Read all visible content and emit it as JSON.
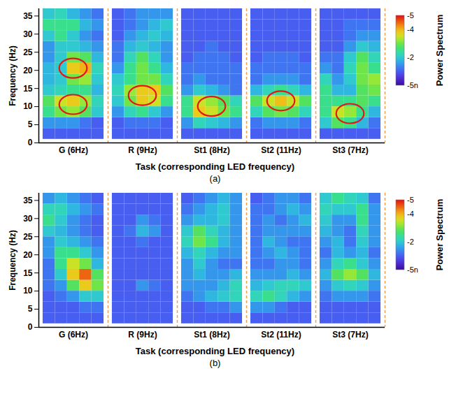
{
  "chart_data": [
    {
      "type": "heatmap",
      "title": "(a)",
      "x_label": "Task (corresponding LED frequency)",
      "y_label": "Frequency (Hz)",
      "categories": [
        "G (6Hz)",
        "R (9Hz)",
        "St1 (8Hz)",
        "St2 (11Hz)",
        "St3 (7Hz)"
      ],
      "ylim": [
        0,
        37
      ],
      "yticks": [
        0,
        5,
        10,
        15,
        20,
        25,
        30,
        35
      ],
      "frequency_bins": [
        1,
        4,
        7,
        10,
        13,
        16,
        19,
        22,
        25,
        28,
        31,
        34,
        37
      ],
      "cells": [
        [
          [
            1,
            1,
            1,
            1,
            1
          ],
          [
            1.5,
            1.5,
            1.5,
            1.2,
            1
          ],
          [
            2.5,
            3,
            3.2,
            2.8,
            2
          ],
          [
            2.8,
            3.5,
            3.8,
            3.2,
            2.2
          ],
          [
            2,
            2.2,
            2.5,
            2.5,
            1.8
          ],
          [
            1.8,
            2,
            3,
            3.2,
            2
          ],
          [
            1.8,
            2,
            3.8,
            4,
            2.2
          ],
          [
            1.5,
            2,
            3,
            2.8,
            1.8
          ],
          [
            1.5,
            2,
            2,
            1.8,
            1.5
          ],
          [
            2,
            2.5,
            2,
            1.5,
            1.2
          ],
          [
            2.5,
            2.5,
            2.5,
            1.8,
            1.5
          ],
          [
            2,
            2.2,
            1.8,
            1.5,
            1.2
          ]
        ],
        [
          [
            1,
            1,
            1,
            1,
            1
          ],
          [
            1,
            1.2,
            1.2,
            1.2,
            1
          ],
          [
            1.5,
            2.2,
            2.5,
            2,
            1.5
          ],
          [
            2,
            3,
            3.8,
            3.5,
            2.5
          ],
          [
            2.2,
            3.2,
            3.8,
            3.8,
            2.8
          ],
          [
            2,
            2.5,
            3,
            3,
            2.2
          ],
          [
            1.5,
            2.5,
            3,
            2.5,
            1.8
          ],
          [
            1.2,
            2.2,
            2.8,
            2.2,
            1.5
          ],
          [
            1.2,
            1.8,
            2,
            1.8,
            1.5
          ],
          [
            1,
            1.5,
            1.8,
            2,
            1.8
          ],
          [
            1,
            1.2,
            1.5,
            1.8,
            2
          ],
          [
            1,
            1.2,
            1.5,
            1.5,
            1.5
          ]
        ],
        [
          [
            1,
            1,
            1,
            1,
            1
          ],
          [
            1.5,
            2.2,
            2,
            1.8,
            1.5
          ],
          [
            2.5,
            3.8,
            3.5,
            3,
            2.5
          ],
          [
            2.5,
            3.5,
            3.2,
            2.8,
            2.2
          ],
          [
            1.5,
            2,
            1.8,
            1.5,
            1.2
          ],
          [
            1.2,
            1.5,
            1.2,
            1.2,
            1.2
          ],
          [
            1.2,
            1.2,
            1.2,
            1.2,
            1.2
          ],
          [
            1,
            1.2,
            1.2,
            1.2,
            1
          ],
          [
            1,
            1,
            1.2,
            1,
            1
          ],
          [
            1,
            1,
            1,
            1,
            1
          ],
          [
            1,
            1,
            1,
            1,
            1
          ],
          [
            1,
            1,
            1,
            1,
            1
          ]
        ],
        [
          [
            1,
            1,
            1,
            1,
            1
          ],
          [
            1.2,
            1.5,
            1.5,
            1.5,
            1.2
          ],
          [
            2.2,
            2.8,
            3,
            2.8,
            2.2
          ],
          [
            2.8,
            3.5,
            3.9,
            3.5,
            2.8
          ],
          [
            1.8,
            2.2,
            2.5,
            2.2,
            1.8
          ],
          [
            1.2,
            1.5,
            1.5,
            1.5,
            1.2
          ],
          [
            1.2,
            1.2,
            1.2,
            1.2,
            1.2
          ],
          [
            1,
            1.2,
            1.2,
            1.2,
            1
          ],
          [
            1,
            1,
            1,
            1,
            1
          ],
          [
            1,
            1,
            1,
            1,
            1
          ],
          [
            1,
            1,
            1,
            1,
            1
          ],
          [
            1,
            1,
            1,
            1,
            1
          ]
        ],
        [
          [
            1,
            1,
            1,
            1,
            1
          ],
          [
            2,
            2.8,
            2.5,
            1.8,
            1.2
          ],
          [
            2.5,
            3.5,
            3.2,
            2.5,
            1.8
          ],
          [
            2.5,
            2.5,
            2.5,
            2.8,
            2.5
          ],
          [
            2.5,
            1.8,
            1.8,
            2.8,
            3
          ],
          [
            2.2,
            1.5,
            2,
            3,
            3.2
          ],
          [
            1.5,
            1.2,
            2.2,
            3,
            2.5
          ],
          [
            1.2,
            1.2,
            2,
            2.8,
            2.2
          ],
          [
            1,
            1,
            1.5,
            2,
            1.8
          ],
          [
            1,
            1,
            1.2,
            1.5,
            1.5
          ],
          [
            1,
            1,
            1.2,
            1.2,
            1.2
          ],
          [
            1,
            1,
            1,
            1,
            1
          ]
        ]
      ],
      "highlights": [
        {
          "task": "G (6Hz)",
          "frequency": 20.5
        },
        {
          "task": "G (6Hz)",
          "frequency": 10.5
        },
        {
          "task": "R (9Hz)",
          "frequency": 13
        },
        {
          "task": "St1 (8Hz)",
          "frequency": 10
        },
        {
          "task": "St2 (11Hz)",
          "frequency": 11.5
        },
        {
          "task": "St3 (7Hz)",
          "frequency": 8
        }
      ],
      "colorbar": {
        "label": "Power Spectrum",
        "range": [
          0,
          5
        ],
        "ticks": [
          {
            "value": 5,
            "label": "-5"
          },
          {
            "value": 4,
            "label": "-4"
          },
          {
            "value": 2,
            "label": "-2"
          },
          {
            "value": 0,
            "label": "-5n"
          }
        ]
      }
    },
    {
      "type": "heatmap",
      "title": "(b)",
      "x_label": "Task (corresponding LED frequency)",
      "y_label": "Frequency (Hz)",
      "categories": [
        "G (6Hz)",
        "R (9Hz)",
        "St1 (8Hz)",
        "St2 (11Hz)",
        "St3 (7Hz)"
      ],
      "ylim": [
        0,
        37
      ],
      "yticks": [
        0,
        5,
        10,
        15,
        20,
        25,
        30,
        35
      ],
      "frequency_bins": [
        1,
        4,
        7,
        10,
        13,
        16,
        19,
        22,
        25,
        28,
        31,
        34,
        37
      ],
      "cells": [
        [
          [
            1,
            1,
            1,
            1,
            1
          ],
          [
            1,
            1,
            1,
            1.2,
            1.2
          ],
          [
            1,
            1.2,
            1.5,
            2,
            2
          ],
          [
            1.2,
            1.5,
            2.8,
            3.8,
            3
          ],
          [
            1.2,
            2,
            3.8,
            4.5,
            2.8
          ],
          [
            1.2,
            2.5,
            3.5,
            3,
            1.8
          ],
          [
            1.5,
            2.5,
            2.5,
            2,
            1.5
          ],
          [
            1.5,
            2,
            1.8,
            1.5,
            1.2
          ],
          [
            2,
            1.8,
            1.5,
            1.2,
            1
          ],
          [
            2.5,
            2,
            1.5,
            1.2,
            1
          ],
          [
            2.2,
            2.2,
            1.8,
            1.5,
            1.2
          ],
          [
            1.5,
            1.8,
            1.5,
            1.2,
            1
          ]
        ],
        [
          [
            1,
            1,
            1,
            1,
            1
          ],
          [
            1,
            1,
            1,
            1,
            1
          ],
          [
            1,
            1,
            1,
            1,
            1
          ],
          [
            1,
            1,
            1.5,
            1.2,
            1
          ],
          [
            1,
            1,
            1,
            1,
            1
          ],
          [
            1,
            1,
            1,
            1,
            1
          ],
          [
            1,
            1,
            1,
            1,
            1
          ],
          [
            1,
            1,
            1.2,
            1,
            1
          ],
          [
            1,
            1.2,
            1.8,
            1.5,
            1
          ],
          [
            1,
            1,
            1.5,
            1.2,
            1
          ],
          [
            1,
            1,
            1,
            1,
            1
          ],
          [
            1,
            1,
            1,
            1,
            1
          ]
        ],
        [
          [
            1,
            1,
            1,
            1,
            1
          ],
          [
            1,
            1,
            1.2,
            1.2,
            1.5
          ],
          [
            1.2,
            1.5,
            1.8,
            2,
            2.2
          ],
          [
            1.5,
            1.5,
            1.5,
            1.8,
            2.2
          ],
          [
            1.5,
            1.8,
            1.5,
            1.5,
            1.8
          ],
          [
            1.5,
            2,
            1.5,
            1.2,
            1.2
          ],
          [
            1.8,
            2.2,
            1.8,
            1.5,
            1.5
          ],
          [
            2.2,
            3,
            2.5,
            1.8,
            1.5
          ],
          [
            2,
            2.8,
            2.2,
            1.8,
            1.5
          ],
          [
            1.5,
            1.8,
            1.8,
            2,
            1.5
          ],
          [
            1.2,
            1.5,
            1.8,
            2,
            1.5
          ],
          [
            1,
            1.2,
            1.5,
            1.8,
            1.5
          ]
        ],
        [
          [
            1,
            1,
            1,
            1,
            1
          ],
          [
            1.5,
            1.5,
            1.2,
            1,
            1
          ],
          [
            2.2,
            2.5,
            2.2,
            1.8,
            1.5
          ],
          [
            1.8,
            2,
            2.2,
            2.2,
            2
          ],
          [
            1.5,
            1.5,
            1.5,
            1.8,
            1.5
          ],
          [
            1.2,
            1.2,
            1.5,
            1.5,
            1.2
          ],
          [
            1.2,
            1.5,
            1.8,
            1.5,
            1.2
          ],
          [
            1.2,
            1.8,
            1.5,
            1.2,
            1.2
          ],
          [
            1.2,
            1.5,
            1.5,
            1.5,
            1.5
          ],
          [
            1.2,
            1.5,
            1.2,
            1.5,
            1.8
          ],
          [
            1.2,
            1.2,
            1.5,
            1.8,
            1.5
          ],
          [
            1,
            1.2,
            1.5,
            1.5,
            1.2
          ]
        ],
        [
          [
            1,
            1,
            1,
            1,
            1
          ],
          [
            1,
            1,
            1,
            1,
            1
          ],
          [
            1.2,
            1.5,
            1.5,
            1.5,
            1.2
          ],
          [
            1.5,
            2,
            2.2,
            2,
            1.5
          ],
          [
            1.8,
            2.8,
            3.2,
            2.8,
            1.8
          ],
          [
            1.5,
            2.2,
            2.5,
            2,
            1.5
          ],
          [
            1.2,
            1.8,
            1.5,
            1.8,
            1.2
          ],
          [
            1.5,
            1.8,
            1.2,
            2,
            1.5
          ],
          [
            1.8,
            1.5,
            1.2,
            2.2,
            1.5
          ],
          [
            2,
            1.5,
            1.5,
            2.5,
            1.5
          ],
          [
            2.2,
            2,
            2,
            2.5,
            1.5
          ],
          [
            2,
            2.5,
            2.2,
            2,
            1.2
          ]
        ]
      ],
      "colorbar": {
        "label": "Power Spectrum",
        "range": [
          0,
          5
        ],
        "ticks": [
          {
            "value": 5,
            "label": "-5"
          },
          {
            "value": 4,
            "label": "-4"
          },
          {
            "value": 2,
            "label": "-2"
          },
          {
            "value": 0,
            "label": "-5n"
          }
        ]
      }
    }
  ]
}
